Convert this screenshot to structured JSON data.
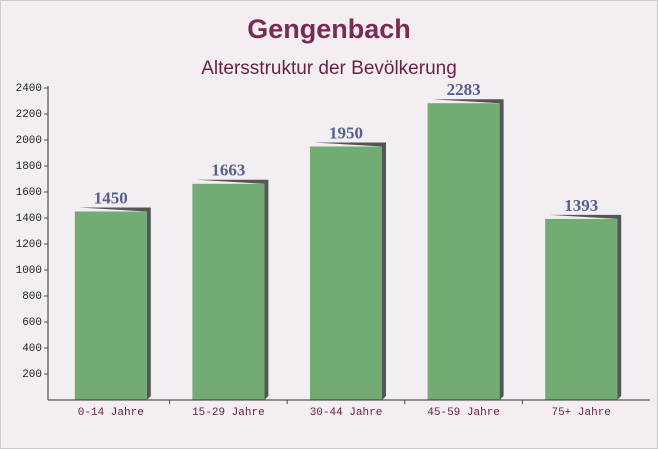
{
  "chart_data": {
    "type": "bar",
    "title": "Gengenbach",
    "subtitle": "Altersstruktur der Bevölkerung",
    "categories": [
      "0-14 Jahre",
      "15-29 Jahre",
      "30-44 Jahre",
      "45-59 Jahre",
      "75+ Jahre"
    ],
    "values": [
      1450,
      1663,
      1950,
      2283,
      1393
    ],
    "color": "#6aa86a",
    "ylim": [
      0,
      2400
    ],
    "yticks": [
      200,
      400,
      600,
      800,
      1000,
      1200,
      1400,
      1600,
      1800,
      2000,
      2200,
      2400
    ],
    "grid": false
  }
}
